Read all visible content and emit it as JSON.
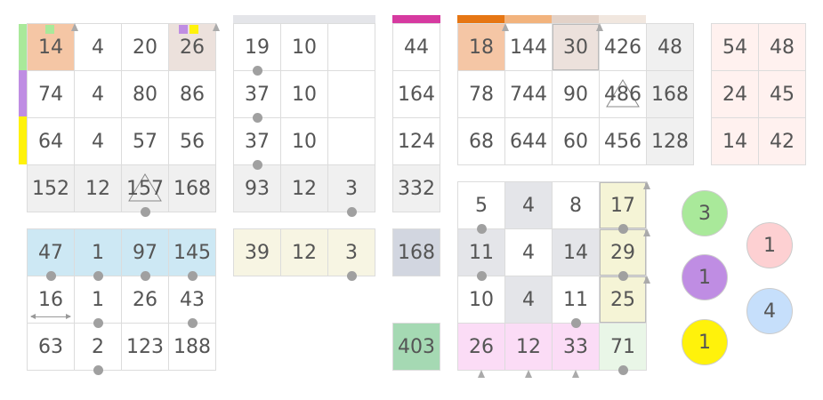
{
  "colors": {
    "peach": "#f5c6a5",
    "taupe": "#ece1dc",
    "gray": "#f0f0f0",
    "blue": "#cde8f4",
    "cream": "#f7f5e3",
    "slate": "#d2d6e0",
    "green": "#a5d9b3",
    "pink": "#fbdcf6",
    "lightpink": "#fff1ef",
    "mint": "#e9f6e7",
    "yellowish": "#f5f4d6",
    "midgray": "#e4e5e9",
    "green_strip": "#a9e99a",
    "purple_strip": "#bf8de3",
    "yellow_strip": "#fff20b",
    "magenta_strip": "#d63aa0",
    "orange1": "#e67614",
    "orange2": "#f2b37d",
    "taupe2": "#e3d2c8",
    "taupe3": "#f1e7df"
  },
  "grid_a": [
    "14",
    "4",
    "20",
    "26",
    "74",
    "4",
    "80",
    "86",
    "64",
    "4",
    "57",
    "56",
    "152",
    "12",
    "157",
    "168"
  ],
  "grid_b": [
    "19",
    "10",
    "",
    "37",
    "10",
    "",
    "37",
    "10",
    "",
    "93",
    "12",
    "3"
  ],
  "grid_c": [
    "44",
    "164",
    "124",
    "332"
  ],
  "grid_d": [
    "18",
    "144",
    "30",
    "426",
    "48",
    "78",
    "744",
    "90",
    "486",
    "168",
    "68",
    "644",
    "60",
    "456",
    "128"
  ],
  "grid_e": [
    "54",
    "48",
    "24",
    "45",
    "14",
    "42"
  ],
  "grid_f": [
    "47",
    "1",
    "97",
    "145",
    "16",
    "1",
    "26",
    "43",
    "63",
    "2",
    "123",
    "188"
  ],
  "grid_g": [
    "39",
    "12",
    "3"
  ],
  "grid_h": [
    "168"
  ],
  "grid_i": [
    "5",
    "4",
    "8",
    "17",
    "11",
    "4",
    "14",
    "29",
    "10",
    "4",
    "11",
    "25",
    "26",
    "12",
    "33",
    "71"
  ],
  "grid_j": [
    "403"
  ],
  "circles": [
    "3",
    "1",
    "1",
    "1",
    "4"
  ]
}
